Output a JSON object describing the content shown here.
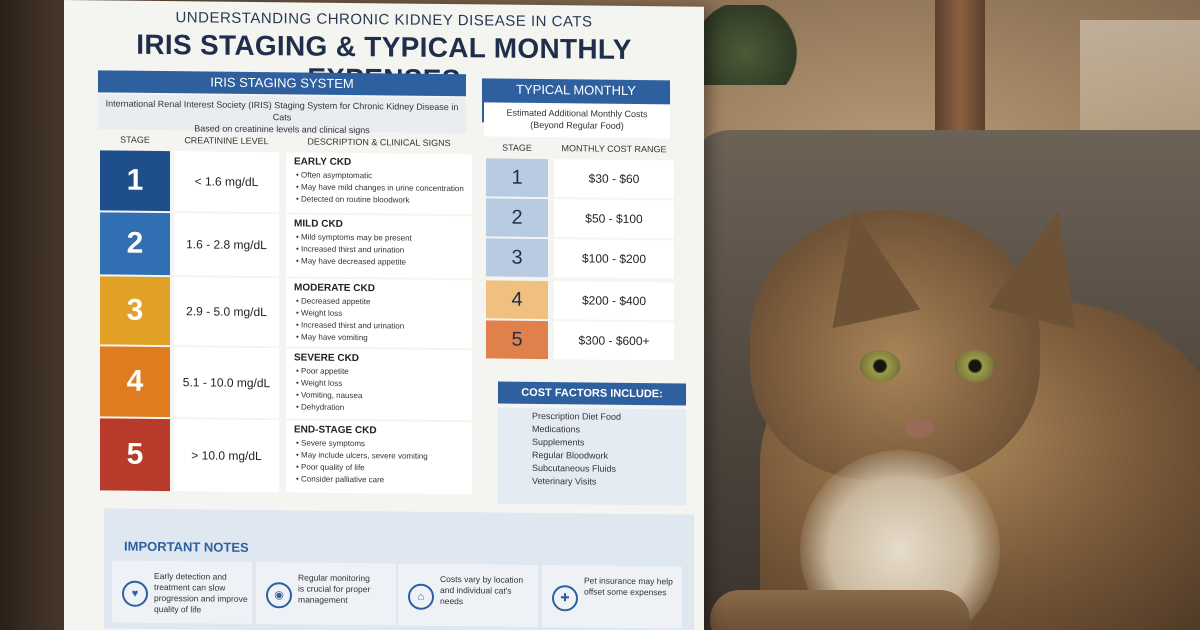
{
  "poster": {
    "supertitle": "UNDERSTANDING CHRONIC KIDNEY DISEASE IN CATS",
    "title": "IRIS STAGING & TYPICAL MONTHLY EXPENSES",
    "iris": {
      "header": "IRIS STAGING SYSTEM",
      "subtitle_1": "International Renal Interest Society (IRIS) Staging System for Chronic Kidney Disease in Cats",
      "subtitle_2": "Based on creatinine levels and clinical signs",
      "columns": [
        "STAGE",
        "CREATININE LEVEL",
        "DESCRIPTION & CLINICAL SIGNS"
      ],
      "stages": [
        {
          "stage": "1",
          "creatinine": "< 1.6 mg/dL",
          "title": "EARLY CKD",
          "color": "#1f4e8c",
          "signs": [
            "Often asymptomatic",
            "May have mild changes in urine concentration",
            "Detected on routine bloodwork"
          ]
        },
        {
          "stage": "2",
          "creatinine": "1.6 - 2.8 mg/dL",
          "title": "MILD CKD",
          "color": "#2f6fb2",
          "signs": [
            "Mild symptoms may be present",
            "Increased thirst and urination",
            "May have decreased appetite"
          ]
        },
        {
          "stage": "3",
          "creatinine": "2.9 - 5.0 mg/dL",
          "title": "MODERATE CKD",
          "color": "#e0a126",
          "signs": [
            "Decreased appetite",
            "Weight loss",
            "Increased thirst and urination",
            "May have vomiting"
          ]
        },
        {
          "stage": "4",
          "creatinine": "5.1 - 10.0 mg/dL",
          "title": "SEVERE CKD",
          "color": "#e07b1f",
          "signs": [
            "Poor appetite",
            "Weight loss",
            "Vomiting, nausea",
            "Dehydration"
          ]
        },
        {
          "stage": "5",
          "creatinine": "> 10.0 mg/dL",
          "title": "END-STAGE CKD",
          "color": "#b83a2a",
          "signs": [
            "Severe symptoms",
            "May include ulcers, severe vomiting",
            "Poor quality of life",
            "Consider palliative care"
          ]
        }
      ]
    },
    "expenses": {
      "header": "TYPICAL MONTHLY EXPENSES",
      "subtitle_1": "Estimated Additional Monthly Costs",
      "subtitle_2": "(Beyond Regular Food)",
      "columns": [
        "STAGE",
        "MONTHLY COST RANGE"
      ],
      "rows": [
        {
          "stage": "1",
          "cost": "$30 - $60",
          "color": "#b9cbe0"
        },
        {
          "stage": "2",
          "cost": "$50 - $100",
          "color": "#b9cbe0"
        },
        {
          "stage": "3",
          "cost": "$100 - $200",
          "color": "#b9cbe0"
        },
        {
          "stage": "4",
          "cost": "$200 - $400",
          "color": "#f0c080"
        },
        {
          "stage": "5",
          "cost": "$300 - $600+",
          "color": "#e0804a"
        }
      ],
      "factors_header": "COST FACTORS INCLUDE:",
      "factors": [
        "Prescription Diet Food",
        "Medications",
        "Supplements",
        "Regular Bloodwork",
        "Subcutaneous Fluids",
        "Veterinary Visits"
      ]
    },
    "notes": {
      "header": "IMPORTANT NOTES",
      "items": [
        {
          "icon": "heart-shield-icon",
          "lines": [
            "Early detection and",
            "treatment can slow",
            "progression and improve",
            "quality of life"
          ]
        },
        {
          "icon": "monitor-icon",
          "lines": [
            "Regular monitoring",
            "is crucial for proper",
            "management"
          ]
        },
        {
          "icon": "map-pin-icon",
          "lines": [
            "Costs vary by location",
            "and individual cat's",
            "needs"
          ]
        },
        {
          "icon": "insurance-shield-icon",
          "lines": [
            "Pet insurance may help",
            "offset some expenses"
          ]
        }
      ]
    }
  }
}
